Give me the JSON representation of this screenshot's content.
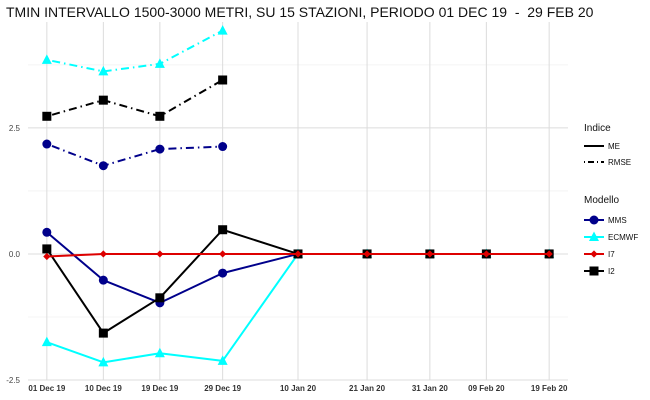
{
  "chart_data": {
    "type": "line",
    "title": "TMIN INTERVALLO 1500-3000 METRI, SU 15 STAZIONI, PERIODO 01 DEC 19  -  29 FEB 20",
    "xlabel": "",
    "ylabel": "",
    "x": [
      "01 Dec 19",
      "10 Dec 19",
      "19 Dec 19",
      "29 Dec 19",
      "10 Jan 20",
      "21 Jan 20",
      "31 Jan 20",
      "09 Feb 20",
      "19 Feb 20"
    ],
    "x_days": [
      0,
      9,
      18,
      28,
      40,
      51,
      61,
      70,
      80
    ],
    "ylim": [
      -2.5,
      4.6
    ],
    "yticks": [
      -2.5,
      0.0,
      2.5
    ],
    "ytick_labels": [
      "-2.5",
      "0.0",
      "2.5"
    ],
    "grid": true,
    "legend_position": "right",
    "legend": {
      "indice_title": "Indice",
      "indice_items": [
        {
          "label": "ME",
          "linestyle": "solid"
        },
        {
          "label": "RMSE",
          "linestyle": "dotdash"
        }
      ],
      "modello_title": "Modello",
      "modello_items": [
        {
          "label": "MMS",
          "color": "#00008b",
          "marker": "circle"
        },
        {
          "label": "ECMWF",
          "color": "#00ffff",
          "marker": "triangle"
        },
        {
          "label": "I7",
          "color": "#dd0000",
          "marker": "diamond"
        },
        {
          "label": "I2",
          "color": "#000000",
          "marker": "square"
        }
      ]
    },
    "series": [
      {
        "model": "MMS",
        "indice": "ME",
        "color": "#00008b",
        "marker": "circle",
        "dash": "solid",
        "x": [
          0,
          9,
          18,
          28,
          40,
          51,
          61,
          70,
          80
        ],
        "values": [
          0.43,
          -0.52,
          -0.97,
          -0.38,
          0.0,
          0.0,
          0.0,
          0.0,
          0.0
        ]
      },
      {
        "model": "ECMWF",
        "indice": "ME",
        "color": "#00ffff",
        "marker": "triangle",
        "dash": "solid",
        "x": [
          0,
          9,
          18,
          28,
          40,
          51,
          61,
          70,
          80
        ],
        "values": [
          -1.75,
          -2.15,
          -1.97,
          -2.12,
          0.0,
          0.0,
          0.0,
          0.0,
          0.0
        ]
      },
      {
        "model": "I7",
        "indice": "ME",
        "color": "#dd0000",
        "marker": "diamond",
        "dash": "solid",
        "x": [
          0,
          9,
          18,
          28,
          40,
          51,
          61,
          70,
          80
        ],
        "values": [
          -0.05,
          0.0,
          0.0,
          0.0,
          0.0,
          0.0,
          0.0,
          0.0,
          0.0
        ]
      },
      {
        "model": "I2",
        "indice": "ME",
        "color": "#000000",
        "marker": "square",
        "dash": "solid",
        "x": [
          0,
          9,
          18,
          28,
          40,
          51,
          61,
          70,
          80
        ],
        "values": [
          0.1,
          -1.57,
          -0.87,
          0.48,
          0.0,
          0.0,
          0.0,
          0.0,
          0.0
        ]
      },
      {
        "model": "MMS",
        "indice": "RMSE",
        "color": "#00008b",
        "marker": "circle",
        "dash": "dotdash",
        "x": [
          0,
          9,
          18,
          28
        ],
        "values": [
          2.18,
          1.75,
          2.08,
          2.13
        ]
      },
      {
        "model": "ECMWF",
        "indice": "RMSE",
        "color": "#00ffff",
        "marker": "triangle",
        "dash": "dotdash",
        "x": [
          0,
          9,
          18,
          28
        ],
        "values": [
          3.85,
          3.62,
          3.77,
          4.43
        ]
      },
      {
        "model": "I2",
        "indice": "RMSE",
        "color": "#000000",
        "marker": "square",
        "dash": "dotdash",
        "x": [
          0,
          9,
          18,
          28
        ],
        "values": [
          2.73,
          3.05,
          2.73,
          3.45
        ]
      }
    ]
  }
}
